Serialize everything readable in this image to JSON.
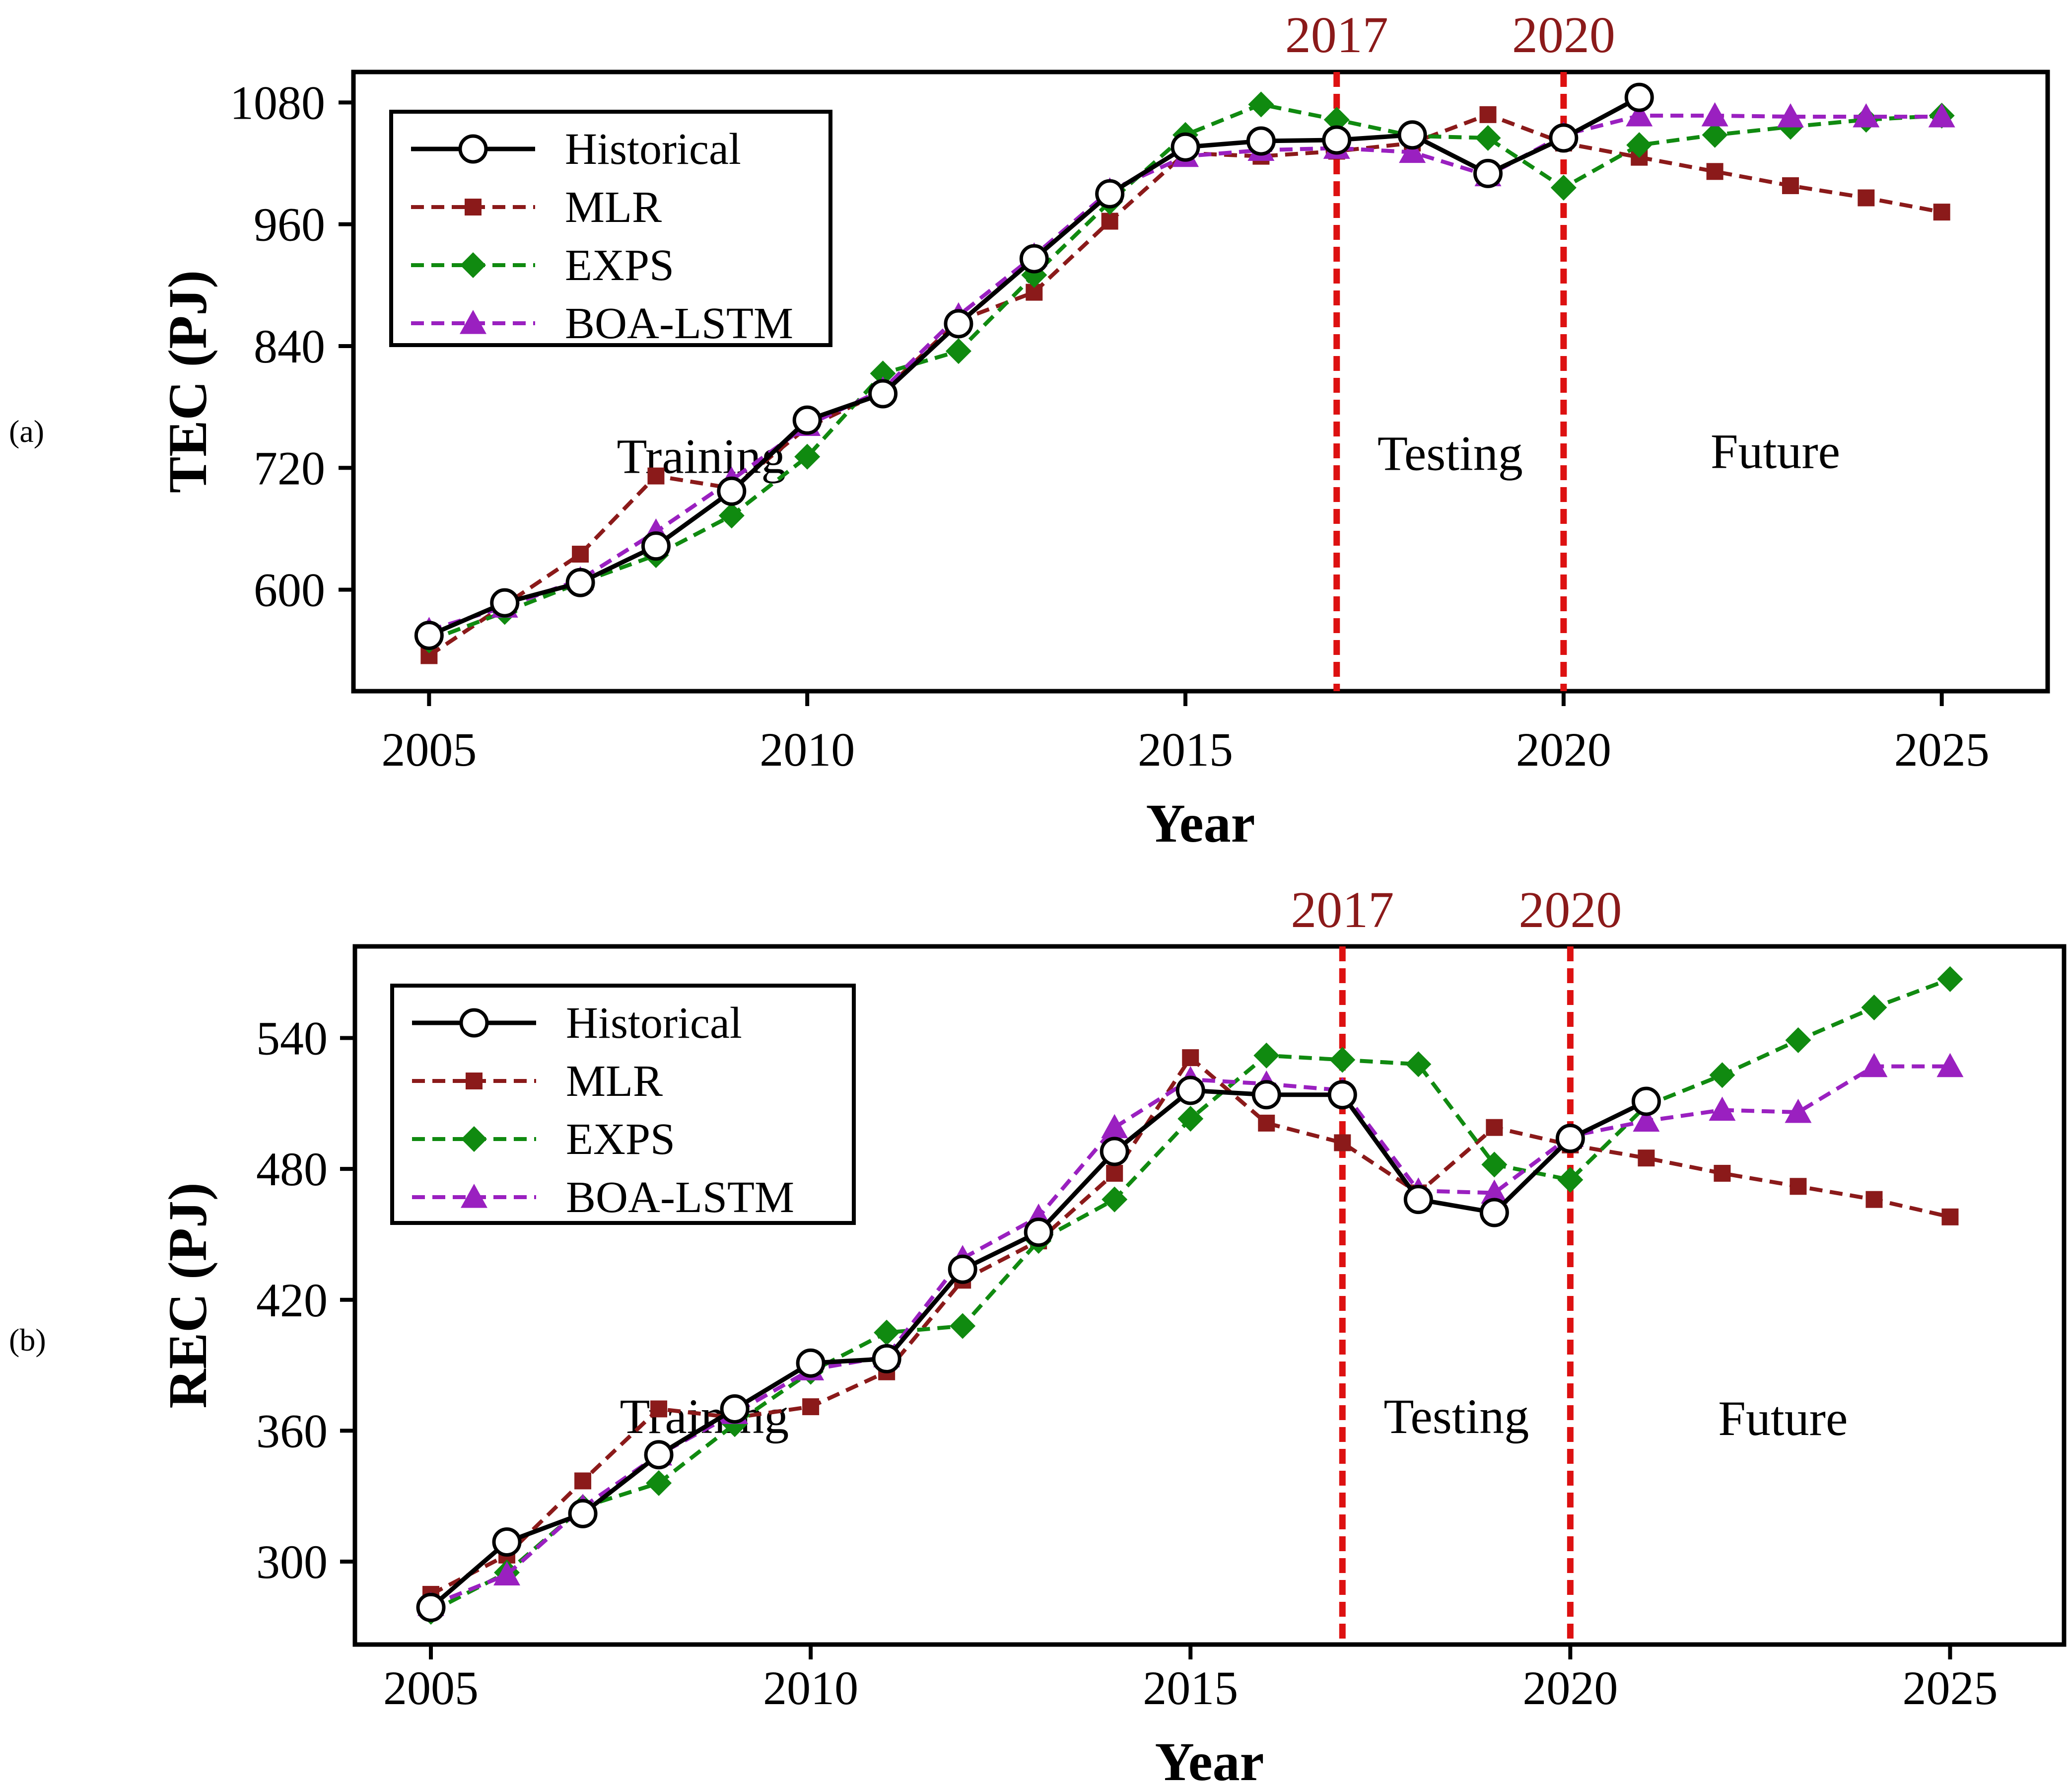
{
  "chart_data": [
    {
      "type": "line",
      "panel_label": "(a)",
      "title": "",
      "xlabel": "Year",
      "ylabel": "TEC (PJ)",
      "xlim": [
        2004.0,
        2026.4
      ],
      "ylim": [
        500,
        1110
      ],
      "xticks": [
        2005,
        2010,
        2015,
        2020,
        2025
      ],
      "yticks": [
        600,
        720,
        840,
        960,
        1080
      ],
      "vlines": [
        {
          "x": 2017,
          "label": "2017",
          "color": "#dd1111"
        },
        {
          "x": 2020,
          "label": "2020",
          "color": "#dd1111"
        }
      ],
      "regions": [
        {
          "label": "Training",
          "x": 2008.6,
          "y": 715
        },
        {
          "label": "Testing",
          "x": 2018.5,
          "y": 718
        },
        {
          "label": "Future",
          "x": 2022.8,
          "y": 720
        }
      ],
      "legend_position": "top-left",
      "series": [
        {
          "name": "Historical",
          "color": "#000000",
          "dash": "solid",
          "marker": "circle-open",
          "x": [
            2005,
            2006,
            2007,
            2008,
            2009,
            2010,
            2011,
            2012,
            2013,
            2014,
            2015,
            2016,
            2017,
            2018,
            2019,
            2020,
            2021
          ],
          "y": [
            555,
            587,
            607,
            643,
            697,
            767,
            793,
            862,
            926,
            990,
            1036,
            1042,
            1043,
            1048,
            1010,
            1045,
            1085
          ]
        },
        {
          "name": "MLR",
          "color": "#8b1a1a",
          "dash": "dashed",
          "marker": "square",
          "x": [
            2005,
            2006,
            2007,
            2008,
            2009,
            2010,
            2011,
            2012,
            2013,
            2014,
            2015,
            2016,
            2017,
            2018,
            2019,
            2020,
            2021,
            2022,
            2023,
            2024,
            2025
          ],
          "y": [
            535,
            585,
            635,
            712,
            700,
            760,
            795,
            865,
            893,
            963,
            1030,
            1027,
            1032,
            1040,
            1068,
            1040,
            1026,
            1012,
            998,
            986,
            972
          ]
        },
        {
          "name": "EXPS",
          "color": "#108a10",
          "dash": "dashed",
          "marker": "diamond",
          "x": [
            2005,
            2006,
            2007,
            2008,
            2009,
            2010,
            2011,
            2012,
            2013,
            2014,
            2015,
            2016,
            2017,
            2018,
            2019,
            2020,
            2021,
            2022,
            2023,
            2024,
            2025
          ],
          "y": [
            550,
            578,
            607,
            634,
            673,
            731,
            813,
            835,
            910,
            982,
            1048,
            1078,
            1063,
            1047,
            1045,
            996,
            1038,
            1048,
            1056,
            1063,
            1067
          ]
        },
        {
          "name": "BOA-LSTM",
          "color": "#9a20c0",
          "dash": "dashed",
          "marker": "triangle",
          "x": [
            2005,
            2006,
            2007,
            2008,
            2009,
            2010,
            2011,
            2012,
            2013,
            2014,
            2015,
            2016,
            2017,
            2018,
            2019,
            2020,
            2021,
            2022,
            2023,
            2024,
            2025
          ],
          "y": [
            560,
            583,
            610,
            657,
            708,
            762,
            797,
            870,
            929,
            993,
            1027,
            1033,
            1035,
            1031,
            1008,
            1048,
            1067,
            1067,
            1066,
            1066,
            1066
          ]
        }
      ]
    },
    {
      "type": "line",
      "panel_label": "(b)",
      "title": "",
      "xlabel": "Year",
      "ylabel": "REC (PJ)",
      "xlim": [
        2004.0,
        2026.5
      ],
      "ylim": [
        262,
        582
      ],
      "xticks": [
        2005,
        2010,
        2015,
        2020,
        2025
      ],
      "yticks": [
        300,
        360,
        420,
        480,
        540
      ],
      "vlines": [
        {
          "x": 2017,
          "label": "2017",
          "color": "#dd1111"
        },
        {
          "x": 2020,
          "label": "2020",
          "color": "#dd1111"
        }
      ],
      "regions": [
        {
          "label": "Training",
          "x": 2008.6,
          "y": 359
        },
        {
          "label": "Testing",
          "x": 2018.5,
          "y": 359
        },
        {
          "label": "Future",
          "x": 2022.8,
          "y": 358
        }
      ],
      "legend_position": "top-left",
      "series": [
        {
          "name": "Historical",
          "color": "#000000",
          "dash": "solid",
          "marker": "circle-open",
          "x": [
            2005,
            2006,
            2007,
            2008,
            2009,
            2010,
            2011,
            2012,
            2013,
            2014,
            2015,
            2016,
            2017,
            2018,
            2019,
            2020,
            2021
          ],
          "y": [
            279,
            309,
            322,
            349,
            370,
            391,
            393,
            434,
            451,
            488,
            516,
            514,
            514,
            466,
            460,
            494,
            511
          ]
        },
        {
          "name": "MLR",
          "color": "#8b1a1a",
          "dash": "dashed",
          "marker": "square",
          "x": [
            2005,
            2006,
            2007,
            2008,
            2009,
            2010,
            2011,
            2012,
            2013,
            2014,
            2015,
            2016,
            2017,
            2018,
            2019,
            2020,
            2021,
            2022,
            2023,
            2024,
            2025
          ],
          "y": [
            285,
            303,
            337,
            370,
            366,
            371,
            387,
            429,
            447,
            478,
            531,
            501,
            492,
            469,
            499,
            491,
            485,
            478,
            472,
            466,
            458
          ]
        },
        {
          "name": "EXPS",
          "color": "#108a10",
          "dash": "dashed",
          "marker": "diamond",
          "x": [
            2005,
            2006,
            2007,
            2008,
            2009,
            2010,
            2011,
            2012,
            2013,
            2014,
            2015,
            2016,
            2017,
            2018,
            2019,
            2020,
            2021,
            2022,
            2023,
            2024,
            2025
          ],
          "y": [
            277,
            295,
            325,
            336,
            363,
            387,
            405,
            408,
            447,
            466,
            503,
            532,
            530,
            528,
            482,
            475,
            509,
            523,
            539,
            554,
            567
          ]
        },
        {
          "name": "BOA-LSTM",
          "color": "#9a20c0",
          "dash": "dashed",
          "marker": "triangle",
          "x": [
            2005,
            2006,
            2007,
            2008,
            2009,
            2010,
            2011,
            2012,
            2013,
            2014,
            2015,
            2016,
            2017,
            2018,
            2019,
            2020,
            2021,
            2022,
            2023,
            2024,
            2025
          ],
          "y": [
            280,
            294,
            325,
            349,
            368,
            388,
            394,
            439,
            458,
            499,
            521,
            519,
            516,
            470,
            469,
            495,
            502,
            507,
            506,
            527,
            527
          ]
        }
      ]
    }
  ]
}
